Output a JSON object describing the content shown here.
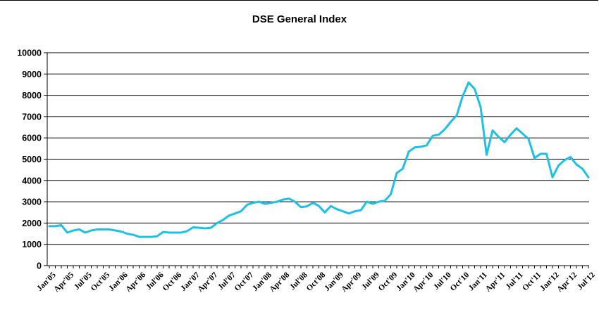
{
  "chart_data": {
    "type": "line",
    "title": "DSE General Index",
    "xlabel": "",
    "ylabel": "",
    "ylim": [
      0,
      10000
    ],
    "yticks": [
      0,
      1000,
      2000,
      3000,
      4000,
      5000,
      6000,
      7000,
      8000,
      9000,
      10000
    ],
    "grid": "horizontal",
    "legend": "none",
    "line_color": "#1fc0e8",
    "xtick_labels": [
      "Jan'05",
      "Apr'05",
      "Jul'05",
      "Oct'05",
      "Jan'06",
      "Apr'06",
      "Jul'06",
      "Oct'06",
      "Jan'07",
      "Apr'07",
      "Jul'07",
      "Oct'07",
      "Jan'08",
      "Apr'08",
      "Jul'08",
      "Oct'08",
      "Jan'09",
      "Apr'09",
      "Jul'09",
      "Oct'09",
      "Jan'10",
      "Apr'10",
      "Jul'10",
      "Oct'10",
      "Jan'11",
      "Apr'11",
      "Jul'11",
      "Oct'11",
      "Jan'12",
      "Apr'12",
      "Jul'12"
    ],
    "series": [
      {
        "values": [
          1850,
          1850,
          1900,
          1550,
          1650,
          1700,
          1550,
          1650,
          1700,
          1700,
          1700,
          1650,
          1600,
          1500,
          1450,
          1350,
          1350,
          1350,
          1380,
          1580,
          1550,
          1550,
          1550,
          1620,
          1800,
          1780,
          1750,
          1780,
          2000,
          2150,
          2350,
          2450,
          2550,
          2850,
          2950,
          3000,
          2900,
          2950,
          3000,
          3100,
          3150,
          3000,
          2750,
          2780,
          2950,
          2800,
          2500,
          2800,
          2650,
          2550,
          2450,
          2550,
          2600,
          3000,
          2900,
          3000,
          3050,
          3350,
          4350,
          4550,
          5350,
          5550,
          5580,
          5650,
          6100,
          6150,
          6400,
          6750,
          7050,
          7950,
          8600,
          8300,
          7450,
          5200,
          6350,
          6050,
          5800,
          6150,
          6450,
          6200,
          5950,
          5050,
          5250,
          5250,
          4150,
          4700,
          4950,
          5100,
          4750,
          4550,
          4150
        ]
      }
    ]
  }
}
